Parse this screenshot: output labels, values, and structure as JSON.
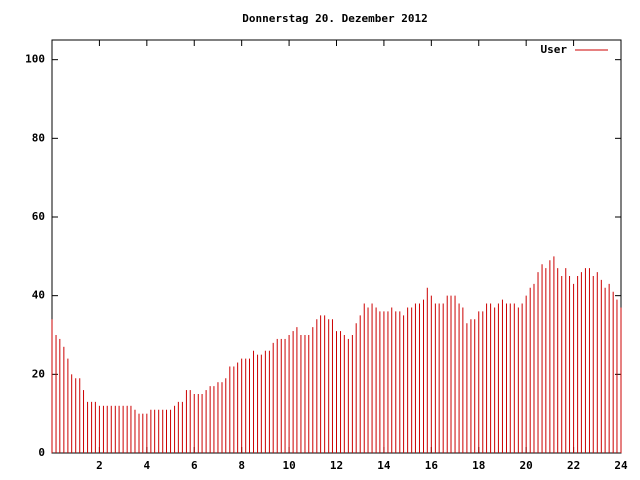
{
  "chart_data": {
    "type": "impulses",
    "title": "Donnerstag 20. Dezember 2012",
    "x": [
      0,
      0.17,
      0.33,
      0.5,
      0.67,
      0.83,
      1,
      1.17,
      1.33,
      1.5,
      1.67,
      1.83,
      2,
      2.17,
      2.33,
      2.5,
      2.67,
      2.83,
      3,
      3.17,
      3.33,
      3.5,
      3.67,
      3.83,
      4,
      4.17,
      4.33,
      4.5,
      4.67,
      4.83,
      5,
      5.17,
      5.33,
      5.5,
      5.67,
      5.83,
      6,
      6.17,
      6.33,
      6.5,
      6.67,
      6.83,
      7,
      7.17,
      7.33,
      7.5,
      7.67,
      7.83,
      8,
      8.17,
      8.33,
      8.5,
      8.67,
      8.83,
      9,
      9.17,
      9.33,
      9.5,
      9.67,
      9.83,
      10,
      10.17,
      10.33,
      10.5,
      10.67,
      10.83,
      11,
      11.17,
      11.33,
      11.5,
      11.67,
      11.83,
      12,
      12.17,
      12.33,
      12.5,
      12.67,
      12.83,
      13,
      13.17,
      13.33,
      13.5,
      13.67,
      13.83,
      14,
      14.17,
      14.33,
      14.5,
      14.67,
      14.83,
      15,
      15.17,
      15.33,
      15.5,
      15.67,
      15.83,
      16,
      16.17,
      16.33,
      16.5,
      16.67,
      16.83,
      17,
      17.17,
      17.33,
      17.5,
      17.67,
      17.83,
      18,
      18.17,
      18.33,
      18.5,
      18.67,
      18.83,
      19,
      19.17,
      19.33,
      19.5,
      19.67,
      19.83,
      20,
      20.17,
      20.33,
      20.5,
      20.67,
      20.83,
      21,
      21.17,
      21.33,
      21.5,
      21.67,
      21.83,
      22,
      22.17,
      22.33,
      22.5,
      22.67,
      22.83,
      23,
      23.17,
      23.33,
      23.5,
      23.67,
      23.83,
      24
    ],
    "series": [
      {
        "name": "User",
        "color": "#cc0000",
        "values": [
          34,
          30,
          29,
          27,
          24,
          20,
          19,
          19,
          16,
          13,
          13,
          13,
          12,
          12,
          12,
          12,
          12,
          12,
          12,
          12,
          12,
          11,
          10,
          10,
          10,
          11,
          11,
          11,
          11,
          11,
          11,
          12,
          13,
          13,
          16,
          16,
          15,
          15,
          15,
          16,
          17,
          17,
          18,
          18,
          19,
          22,
          22,
          23,
          24,
          24,
          24,
          26,
          25,
          25,
          26,
          26,
          28,
          29,
          29,
          29,
          30,
          31,
          32,
          30,
          30,
          30,
          32,
          34,
          35,
          35,
          34,
          34,
          31,
          31,
          30,
          29,
          30,
          33,
          35,
          38,
          37,
          38,
          37,
          36,
          36,
          36,
          37,
          36,
          36,
          35,
          37,
          37,
          38,
          38,
          39,
          42,
          40,
          38,
          38,
          38,
          40,
          40,
          40,
          38,
          37,
          33,
          34,
          34,
          36,
          36,
          38,
          38,
          37,
          38,
          39,
          38,
          38,
          38,
          37,
          38,
          40,
          42,
          43,
          46,
          48,
          47,
          49,
          50,
          47,
          45,
          47,
          45,
          43,
          45,
          46,
          47,
          47,
          45,
          46,
          44,
          42,
          43,
          41,
          39,
          37
        ]
      }
    ],
    "xlim": [
      0,
      24
    ],
    "xticks": [
      2,
      4,
      6,
      8,
      10,
      12,
      14,
      16,
      18,
      20,
      22,
      24
    ],
    "ylim": [
      0,
      105
    ],
    "yticks": [
      0,
      20,
      40,
      60,
      80,
      100
    ]
  }
}
